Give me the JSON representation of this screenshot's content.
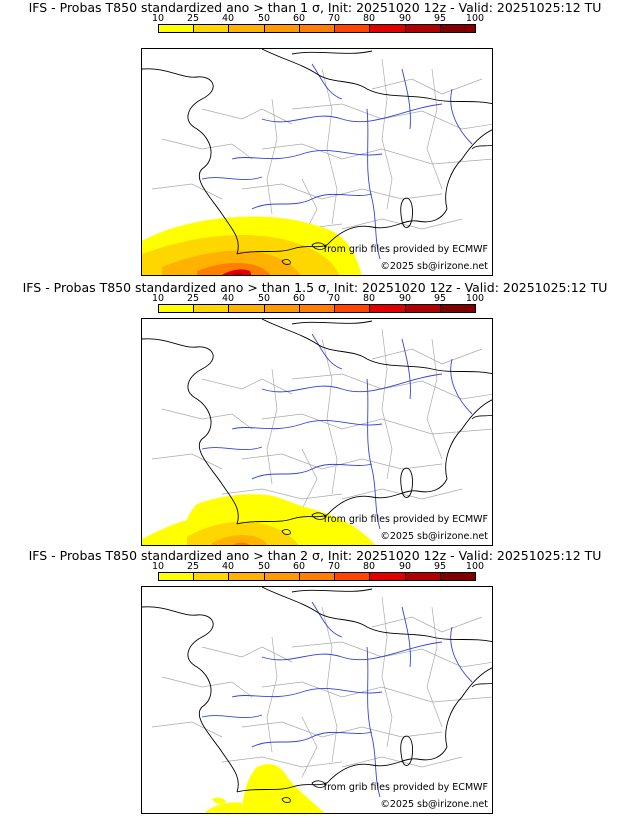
{
  "panels": [
    {
      "title": "IFS - Probas T850  standardized ano > than 1 σ, Init: 20251020 12z - Valid: 20251025:12 TU",
      "threshold": "1 σ"
    },
    {
      "title": "IFS - Probas T850  standardized ano > than 1.5 σ, Init: 20251020 12z - Valid: 20251025:12 TU",
      "threshold": "1.5 σ"
    },
    {
      "title": "IFS - Probas T850  standardized ano > than 2 σ, Init: 20251020 12z - Valid: 20251025:12 TU",
      "threshold": "2 σ"
    }
  ],
  "scale": {
    "labels": [
      "10",
      "25",
      "40",
      "50",
      "60",
      "70",
      "80",
      "90",
      "95",
      "100"
    ],
    "colors": [
      "#ffff00",
      "#ffd700",
      "#ffb300",
      "#ff9a00",
      "#ff7f00",
      "#ff4500",
      "#e00000",
      "#b00000",
      "#800000"
    ]
  },
  "credit": {
    "line1": "from grib files provided by ECMWF",
    "line2": "©2025 sb@irizone.net"
  },
  "colors": {
    "borders": "#000000",
    "rivers": "#3344dd",
    "regions": "#aaaaaa"
  }
}
